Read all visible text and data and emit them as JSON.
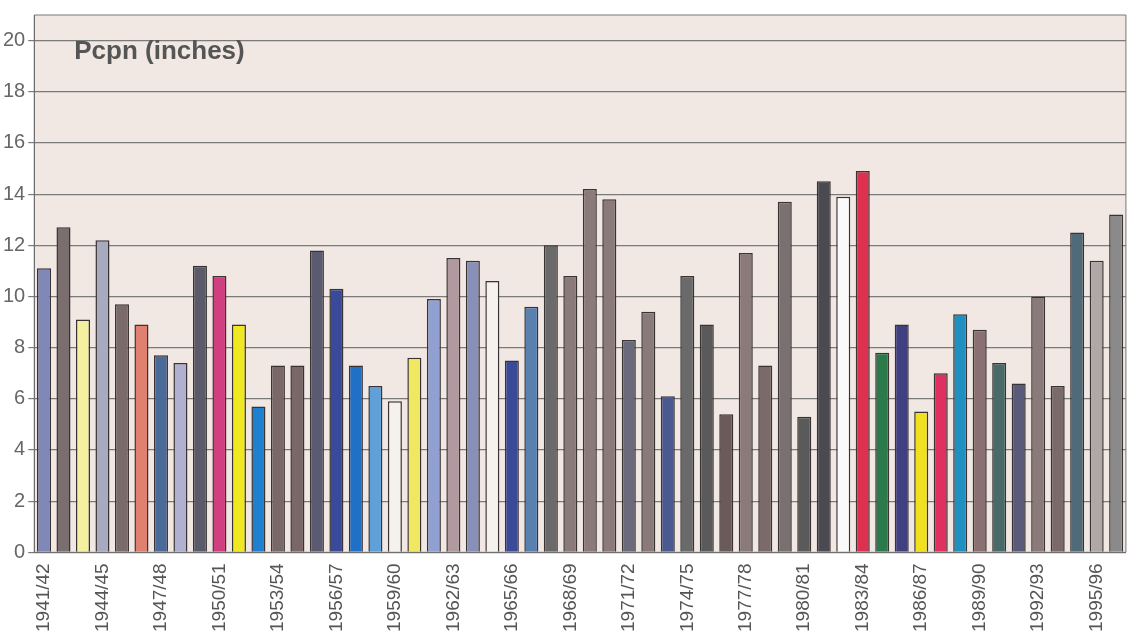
{
  "chart_data": {
    "type": "bar",
    "title": "Pcpn (inches)",
    "categories": [
      "1941/42",
      null,
      null,
      "1944/45",
      null,
      null,
      "1947/48",
      null,
      null,
      "1950/51",
      null,
      null,
      "1953/54",
      null,
      null,
      "1956/57",
      null,
      null,
      "1959/60",
      null,
      null,
      "1962/63",
      null,
      null,
      "1965/66",
      null,
      null,
      "1968/69",
      null,
      null,
      "1971/72",
      null,
      null,
      "1974/75",
      null,
      null,
      "1977/78",
      null,
      null,
      "1980/81",
      null,
      null,
      "1983/84",
      null,
      null,
      "1986/87",
      null,
      null,
      "1989/90",
      null,
      null,
      "1992/93",
      null,
      null,
      "1995/96",
      null
    ],
    "values": [
      11.1,
      12.7,
      9.1,
      12.2,
      9.7,
      8.9,
      7.7,
      7.4,
      11.2,
      10.8,
      8.9,
      5.7,
      7.3,
      7.3,
      11.8,
      10.3,
      7.3,
      6.5,
      5.9,
      7.6,
      9.9,
      11.5,
      11.4,
      10.6,
      7.5,
      9.6,
      12.0,
      10.8,
      14.2,
      13.8,
      8.3,
      9.4,
      6.1,
      10.8,
      8.9,
      5.4,
      11.7,
      7.3,
      13.7,
      5.3,
      14.5,
      13.9,
      14.9,
      7.8,
      8.9,
      5.5,
      7.0,
      9.3,
      8.7,
      7.4,
      6.6,
      10.0,
      6.5,
      12.5,
      11.4,
      13.2
    ],
    "colors": [
      "#8088b8",
      "#7a6e6e",
      "#f5f0a0",
      "#a8aac0",
      "#7a6a6a",
      "#e08070",
      "#4a6a9a",
      "#b0b0d0",
      "#5a5a6a",
      "#d04080",
      "#f0e820",
      "#2080d0",
      "#7a6868",
      "#7a6868",
      "#5a5a70",
      "#3a4a9a",
      "#2070c8",
      "#60a0d8",
      "#f5f2ee",
      "#f0e860",
      "#90a0d0",
      "#b09aa0",
      "#8890b8",
      "#f5f2ee",
      "#3a4a98",
      "#5a80b0",
      "#6a6a6a",
      "#8a7a7a",
      "#8a7a7a",
      "#8a7a7a",
      "#6a6a7a",
      "#8a7a7a",
      "#4a5a90",
      "#6a6a6a",
      "#5a5a5a",
      "#6a5a5a",
      "#8a7a7a",
      "#7a6a6a",
      "#7a7070",
      "#5a5a5a",
      "#4a4a50",
      "#fafafa",
      "#e03050",
      "#2a7a4a",
      "#404080",
      "#f0e020",
      "#e03060",
      "#2090c0",
      "#8a7070",
      "#4a6a6a",
      "#5a5a7a",
      "#8a7a7a",
      "#7a6a6a",
      "#506a7a",
      "#b0a8a8",
      "#8a8a8a"
    ],
    "ylim": [
      0,
      21
    ],
    "yticks": [
      0,
      2,
      4,
      6,
      8,
      10,
      12,
      14,
      16,
      18,
      20
    ],
    "grid": "y",
    "legend": false
  }
}
